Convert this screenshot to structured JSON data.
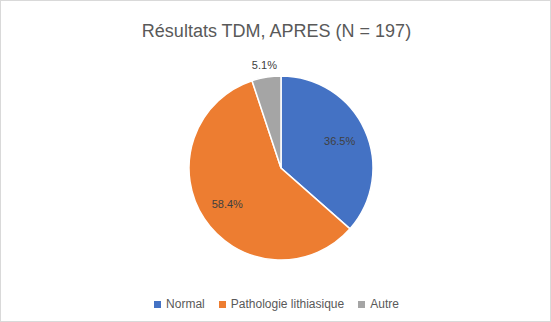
{
  "chart_data": {
    "type": "pie",
    "title": "Résultats TDM, APRES (N = 197)",
    "categories": [
      "Normal",
      "Pathologie lithiasique",
      "Autre"
    ],
    "values": [
      36.5,
      58.4,
      5.1
    ],
    "value_labels": [
      "36.5%",
      "58.4%",
      "5.1%"
    ],
    "colors": [
      "#4472c4",
      "#ed7d31",
      "#a5a5a5"
    ],
    "data_labels": true,
    "legend": "bottom"
  }
}
